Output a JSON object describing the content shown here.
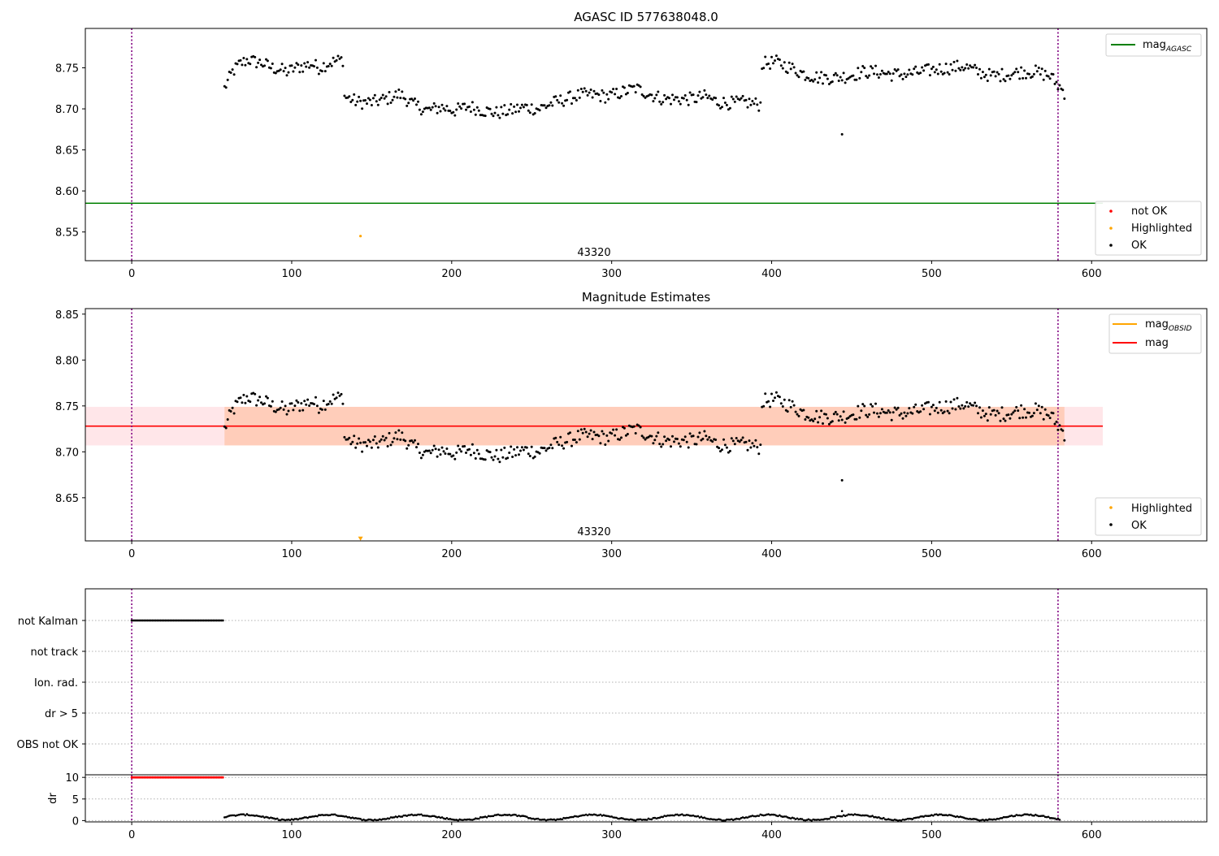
{
  "chart_data": [
    {
      "type": "scatter",
      "title": "AGASC ID 577638048.0",
      "xlim": [
        -29,
        672
      ],
      "ylim": [
        8.515,
        8.798
      ],
      "yticks": [
        8.55,
        8.6,
        8.65,
        8.7,
        8.75
      ],
      "xticks": [
        0,
        100,
        200,
        300,
        400,
        500,
        600
      ],
      "grid": false,
      "reference_lines": [
        {
          "name": "mag_AGASC",
          "y": 8.585,
          "x_end": 607,
          "color": "#008000"
        }
      ],
      "vertical_lines": [
        0,
        579
      ],
      "annotation": {
        "text": "43320",
        "x": 289,
        "y": 8.521
      },
      "highlighted_points": [
        {
          "x": 143,
          "y": 8.545
        }
      ],
      "outliers": [
        {
          "x": 444,
          "y": 8.669
        }
      ],
      "legend_upper": {
        "position": "top-right",
        "entries": [
          {
            "label": "mag",
            "sub": "AGASC",
            "color": "#008000"
          }
        ]
      },
      "legend_lower": {
        "position": "bottom-right",
        "entries": [
          {
            "label": "not OK",
            "color": "#ff0000"
          },
          {
            "label": "Highlighted",
            "color": "#ffa500"
          },
          {
            "label": "OK",
            "color": "#000000"
          }
        ]
      },
      "series": [
        {
          "label": "OK",
          "color": "#000000",
          "segments": [
            {
              "x0": 58,
              "x1": 132,
              "means": [
                8.725,
                8.745,
                8.755,
                8.76,
                8.757,
                8.755,
                8.75,
                8.748,
                8.745,
                8.75,
                8.752,
                8.755,
                8.75,
                8.755,
                8.758,
                8.76
              ]
            },
            {
              "x0": 133,
              "x1": 393,
              "means": [
                8.715,
                8.708,
                8.708,
                8.712,
                8.718,
                8.705,
                8.698,
                8.702,
                8.698,
                8.703,
                8.698,
                8.695,
                8.698,
                8.702,
                8.7,
                8.707,
                8.712,
                8.717,
                8.717,
                8.715,
                8.72,
                8.725,
                8.718,
                8.712,
                8.712,
                8.712,
                8.715,
                8.708,
                8.707,
                8.708,
                8.705
              ]
            },
            {
              "x0": 394,
              "x1": 583,
              "means": [
                8.755,
                8.757,
                8.75,
                8.742,
                8.738,
                8.738,
                8.74,
                8.745,
                8.745,
                8.742,
                8.742,
                8.745,
                8.748,
                8.75,
                8.752,
                8.745,
                8.74,
                8.742,
                8.745,
                8.745,
                8.74,
                8.72
              ]
            }
          ]
        }
      ]
    },
    {
      "type": "scatter",
      "title": "Magnitude Estimates",
      "xlim": [
        -29,
        672
      ],
      "ylim": [
        8.603,
        8.856
      ],
      "yticks": [
        8.65,
        8.7,
        8.75,
        8.8,
        8.85
      ],
      "xticks": [
        0,
        100,
        200,
        300,
        400,
        500,
        600
      ],
      "grid": false,
      "vertical_lines": [
        0,
        579
      ],
      "bands": [
        {
          "name": "mag band",
          "x0": -29,
          "x1": 607,
          "y0": 8.707,
          "y1": 8.749,
          "color": "#ffb6c1",
          "opacity": 0.35
        },
        {
          "name": "mag_OBSID band",
          "x0": 58,
          "x1": 583,
          "y0": 8.707,
          "y1": 8.749,
          "color": "#ff8c40",
          "opacity": 0.28
        }
      ],
      "reference_lines": [
        {
          "name": "mag",
          "y": 8.728,
          "x0": -29,
          "x1": 607,
          "color": "#ff0000"
        }
      ],
      "annotation": {
        "text": "43320",
        "x": 289,
        "y": 8.609
      },
      "highlighted_points": [
        {
          "x": 143,
          "y": 8.605,
          "marker": "triangle-down"
        }
      ],
      "outliers": [
        {
          "x": 444,
          "y": 8.669
        }
      ],
      "legend_upper": {
        "position": "top-right",
        "entries": [
          {
            "label": "mag",
            "sub": "OBSID",
            "color": "#ffa500"
          },
          {
            "label": "mag",
            "sub": "",
            "color": "#ff0000"
          }
        ]
      },
      "legend_lower": {
        "position": "bottom-right",
        "entries": [
          {
            "label": "Highlighted",
            "color": "#ffa500"
          },
          {
            "label": "OK",
            "color": "#000000"
          }
        ]
      }
    },
    {
      "type": "scatter",
      "title": "",
      "xlim": [
        -29,
        672
      ],
      "flag_rows": [
        "not Kalman",
        "not track",
        "Ion. rad.",
        "dr > 5",
        "OBS not OK"
      ],
      "flag_marks": [
        {
          "row": "not Kalman",
          "x0": 0,
          "x1": 57
        }
      ],
      "vertical_lines": [
        0,
        579
      ],
      "grid": true
    },
    {
      "type": "scatter",
      "title": "",
      "xlim": [
        -29,
        672
      ],
      "ylim": [
        -0.3,
        10.6
      ],
      "ylabel": "dr",
      "yticks": [
        0,
        5,
        10
      ],
      "xticks": [
        0,
        100,
        200,
        300,
        400,
        500,
        600
      ],
      "grid": true,
      "vertical_lines": [
        0,
        579
      ],
      "clipped": {
        "x0": 0,
        "x1": 57,
        "y": 10,
        "color": "#ff0000"
      },
      "dr_x0": 58,
      "dr_x1": 580
    }
  ]
}
